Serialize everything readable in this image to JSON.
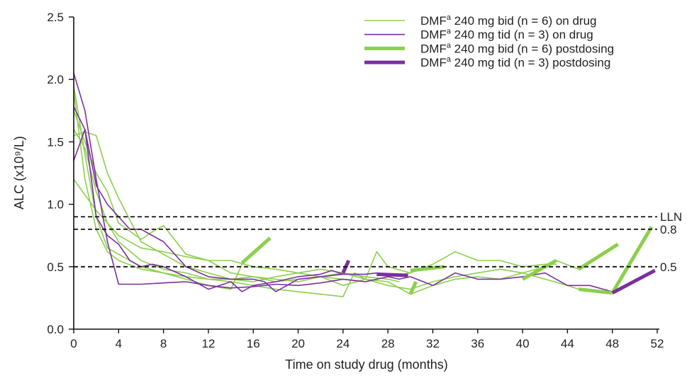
{
  "chart_data": {
    "type": "line",
    "title": "",
    "xlabel": "Time on study drug (months)",
    "ylabel": "ALC (x10⁹/L)",
    "xlim": [
      0,
      52
    ],
    "ylim": [
      0,
      2.5
    ],
    "x_ticks": [
      0,
      4,
      8,
      12,
      16,
      20,
      24,
      28,
      32,
      36,
      40,
      44,
      48,
      52
    ],
    "y_ticks": [
      {
        "value": 0,
        "label": "0.0"
      },
      {
        "value": 0.5,
        "label": "0.5"
      },
      {
        "value": 1.0,
        "label": "1.0"
      },
      {
        "value": 1.5,
        "label": "1.5"
      },
      {
        "value": 2.0,
        "label": "2.0"
      },
      {
        "value": 2.5,
        "label": "2.5"
      }
    ],
    "grid": false,
    "legend_position": "top-right",
    "colors": {
      "bid": "#8ccf4d",
      "tid": "#7b2f9e",
      "reference": "#111111"
    },
    "legend": [
      {
        "label_main": "DMF",
        "label_sup": "a",
        "label_rest": " 240 mg bid (n = 6) on drug",
        "color": "#8ccf4d",
        "style": "thin"
      },
      {
        "label_main": "DMF",
        "label_sup": "a",
        "label_rest": " 240 mg tid (n = 3) on drug",
        "color": "#7b2f9e",
        "style": "thin"
      },
      {
        "label_main": "DMF",
        "label_sup": "a",
        "label_rest": " 240 mg bid (n = 6) postdosing",
        "color": "#8ccf4d",
        "style": "thick"
      },
      {
        "label_main": "DMF",
        "label_sup": "a",
        "label_rest": " 240 mg tid (n = 3) postdosing",
        "color": "#7b2f9e",
        "style": "thick"
      }
    ],
    "reference_lines": [
      {
        "y": 0.9,
        "label": "LLN"
      },
      {
        "y": 0.8,
        "label": "0.8"
      },
      {
        "y": 0.5,
        "label": "0.5"
      }
    ],
    "series": [
      {
        "group": "bid",
        "phase": "on",
        "points": [
          [
            0,
            1.2
          ],
          [
            2,
            0.95
          ],
          [
            4,
            0.75
          ],
          [
            6,
            0.65
          ],
          [
            8,
            0.62
          ],
          [
            10,
            0.58
          ],
          [
            12,
            0.55
          ],
          [
            14,
            0.55
          ],
          [
            16,
            0.5
          ],
          [
            18,
            0.48
          ],
          [
            20,
            0.45
          ],
          [
            22,
            0.42
          ],
          [
            24,
            0.4
          ],
          [
            26,
            0.38
          ],
          [
            28,
            0.42
          ],
          [
            30,
            0.45
          ]
        ]
      },
      {
        "group": "bid",
        "phase": "on",
        "points": [
          [
            0,
            1.55
          ],
          [
            1,
            1.58
          ],
          [
            2,
            1.55
          ],
          [
            3,
            1.25
          ],
          [
            4,
            1.05
          ],
          [
            6,
            0.7
          ],
          [
            8,
            0.6
          ],
          [
            10,
            0.5
          ],
          [
            12,
            0.45
          ],
          [
            14,
            0.4
          ],
          [
            16,
            0.38
          ],
          [
            18,
            0.42
          ],
          [
            20,
            0.45
          ],
          [
            22,
            0.48
          ],
          [
            24,
            0.45
          ],
          [
            26,
            0.42
          ],
          [
            28,
            0.4
          ],
          [
            29,
            0.38
          ]
        ]
      },
      {
        "group": "bid",
        "phase": "on",
        "points": [
          [
            0,
            1.75
          ],
          [
            1,
            1.5
          ],
          [
            2,
            1.25
          ],
          [
            3,
            1.1
          ],
          [
            4,
            0.85
          ],
          [
            6,
            0.72
          ],
          [
            7,
            0.78
          ],
          [
            8,
            0.83
          ],
          [
            10,
            0.6
          ],
          [
            12,
            0.55
          ],
          [
            14,
            0.45
          ],
          [
            16,
            0.42
          ],
          [
            18,
            0.4
          ],
          [
            20,
            0.38
          ],
          [
            22,
            0.42
          ],
          [
            24,
            0.35
          ],
          [
            26,
            0.4
          ],
          [
            27,
            0.62
          ],
          [
            28,
            0.5
          ],
          [
            30,
            0.45
          ],
          [
            32,
            0.52
          ],
          [
            34,
            0.62
          ],
          [
            36,
            0.55
          ],
          [
            38,
            0.55
          ],
          [
            40,
            0.5
          ],
          [
            42,
            0.52
          ],
          [
            43,
            0.52
          ]
        ]
      },
      {
        "group": "bid",
        "phase": "on",
        "points": [
          [
            0,
            1.6
          ],
          [
            1,
            1.45
          ],
          [
            2,
            1.1
          ],
          [
            3,
            0.85
          ],
          [
            4,
            0.7
          ],
          [
            6,
            0.55
          ],
          [
            8,
            0.48
          ],
          [
            10,
            0.45
          ],
          [
            12,
            0.4
          ],
          [
            14,
            0.38
          ],
          [
            16,
            0.35
          ],
          [
            18,
            0.32
          ],
          [
            20,
            0.3
          ],
          [
            22,
            0.28
          ],
          [
            24,
            0.26
          ],
          [
            25,
            0.45
          ],
          [
            26,
            0.4
          ],
          [
            28,
            0.35
          ],
          [
            30,
            0.32
          ],
          [
            32,
            0.38
          ],
          [
            34,
            0.42
          ],
          [
            36,
            0.45
          ],
          [
            38,
            0.48
          ],
          [
            40,
            0.45
          ],
          [
            42,
            0.5
          ],
          [
            43,
            0.55
          ],
          [
            45,
            0.48
          ]
        ]
      },
      {
        "group": "bid",
        "phase": "on",
        "points": [
          [
            0,
            1.95
          ],
          [
            1,
            1.4
          ],
          [
            2,
            0.9
          ],
          [
            3,
            0.65
          ],
          [
            4,
            0.6
          ],
          [
            6,
            0.5
          ],
          [
            8,
            0.45
          ],
          [
            10,
            0.42
          ],
          [
            12,
            0.4
          ],
          [
            14,
            0.4
          ],
          [
            16,
            0.42
          ],
          [
            18,
            0.38
          ],
          [
            20,
            0.4
          ],
          [
            22,
            0.42
          ],
          [
            24,
            0.45
          ],
          [
            26,
            0.4
          ],
          [
            28,
            0.38
          ],
          [
            30,
            0.28
          ],
          [
            32,
            0.35
          ],
          [
            34,
            0.4
          ],
          [
            36,
            0.42
          ],
          [
            38,
            0.4
          ],
          [
            40,
            0.45
          ],
          [
            42,
            0.4
          ],
          [
            44,
            0.35
          ],
          [
            45,
            0.32
          ]
        ]
      },
      {
        "group": "bid",
        "phase": "on",
        "points": [
          [
            0,
            1.9
          ],
          [
            1,
            1.2
          ],
          [
            2,
            0.8
          ],
          [
            3,
            0.62
          ],
          [
            4,
            0.55
          ],
          [
            6,
            0.48
          ],
          [
            8,
            0.45
          ],
          [
            10,
            0.4
          ],
          [
            12,
            0.35
          ],
          [
            14,
            0.32
          ],
          [
            15,
            0.52
          ]
        ]
      },
      {
        "group": "tid",
        "phase": "on",
        "points": [
          [
            0,
            2.05
          ],
          [
            1,
            1.75
          ],
          [
            2,
            1.2
          ],
          [
            3,
            0.7
          ],
          [
            4,
            0.36
          ],
          [
            6,
            0.36
          ],
          [
            8,
            0.37
          ],
          [
            10,
            0.38
          ],
          [
            12,
            0.35
          ],
          [
            14,
            0.33
          ],
          [
            16,
            0.34
          ],
          [
            18,
            0.36
          ],
          [
            20,
            0.35
          ],
          [
            22,
            0.37
          ],
          [
            24,
            0.4
          ],
          [
            26,
            0.38
          ],
          [
            28,
            0.42
          ],
          [
            29,
            0.4
          ],
          [
            30,
            0.42
          ],
          [
            32,
            0.35
          ],
          [
            34,
            0.45
          ],
          [
            36,
            0.4
          ],
          [
            38,
            0.4
          ],
          [
            40,
            0.42
          ],
          [
            42,
            0.45
          ],
          [
            44,
            0.35
          ],
          [
            46,
            0.35
          ],
          [
            48,
            0.3
          ]
        ]
      },
      {
        "group": "tid",
        "phase": "on",
        "points": [
          [
            0,
            1.35
          ],
          [
            1,
            1.6
          ],
          [
            2,
            1.15
          ],
          [
            3,
            1.0
          ],
          [
            4,
            0.9
          ],
          [
            5,
            0.8
          ],
          [
            6,
            0.8
          ],
          [
            8,
            0.7
          ],
          [
            10,
            0.5
          ],
          [
            12,
            0.42
          ],
          [
            14,
            0.4
          ],
          [
            16,
            0.4
          ],
          [
            17,
            0.38
          ],
          [
            18,
            0.3
          ],
          [
            19,
            0.35
          ],
          [
            20,
            0.4
          ],
          [
            22,
            0.42
          ],
          [
            24,
            0.44
          ]
        ]
      },
      {
        "group": "tid",
        "phase": "on",
        "points": [
          [
            0,
            1.78
          ],
          [
            1,
            1.6
          ],
          [
            2,
            0.9
          ],
          [
            3,
            0.75
          ],
          [
            4,
            0.68
          ],
          [
            5,
            0.55
          ],
          [
            6,
            0.5
          ],
          [
            7,
            0.52
          ],
          [
            8,
            0.5
          ],
          [
            10,
            0.42
          ],
          [
            12,
            0.32
          ],
          [
            14,
            0.38
          ],
          [
            15,
            0.3
          ],
          [
            16,
            0.35
          ],
          [
            18,
            0.38
          ],
          [
            20,
            0.42
          ],
          [
            22,
            0.44
          ],
          [
            23,
            0.47
          ],
          [
            24,
            0.44
          ],
          [
            26,
            0.44
          ],
          [
            27,
            0.45
          ]
        ]
      },
      {
        "group": "bid",
        "phase": "post",
        "points": [
          [
            15,
            0.53
          ],
          [
            17.5,
            0.73
          ]
        ]
      },
      {
        "group": "bid",
        "phase": "post",
        "points": [
          [
            30,
            0.47
          ],
          [
            33,
            0.5
          ]
        ]
      },
      {
        "group": "bid",
        "phase": "post",
        "points": [
          [
            30,
            0.28
          ],
          [
            30.5,
            0.38
          ]
        ]
      },
      {
        "group": "bid",
        "phase": "post",
        "points": [
          [
            40,
            0.4
          ],
          [
            43,
            0.55
          ]
        ]
      },
      {
        "group": "bid",
        "phase": "post",
        "points": [
          [
            45,
            0.48
          ],
          [
            48.5,
            0.68
          ]
        ]
      },
      {
        "group": "bid",
        "phase": "post",
        "points": [
          [
            45,
            0.32
          ],
          [
            48,
            0.29
          ]
        ]
      },
      {
        "group": "bid",
        "phase": "post",
        "points": [
          [
            48,
            0.29
          ],
          [
            51.5,
            0.82
          ]
        ]
      },
      {
        "group": "tid",
        "phase": "post",
        "points": [
          [
            24,
            0.45
          ],
          [
            24.5,
            0.55
          ]
        ]
      },
      {
        "group": "tid",
        "phase": "post",
        "points": [
          [
            27,
            0.44
          ],
          [
            29.8,
            0.43
          ]
        ]
      },
      {
        "group": "tid",
        "phase": "post",
        "points": [
          [
            48,
            0.29
          ],
          [
            51.8,
            0.47
          ]
        ]
      }
    ]
  }
}
